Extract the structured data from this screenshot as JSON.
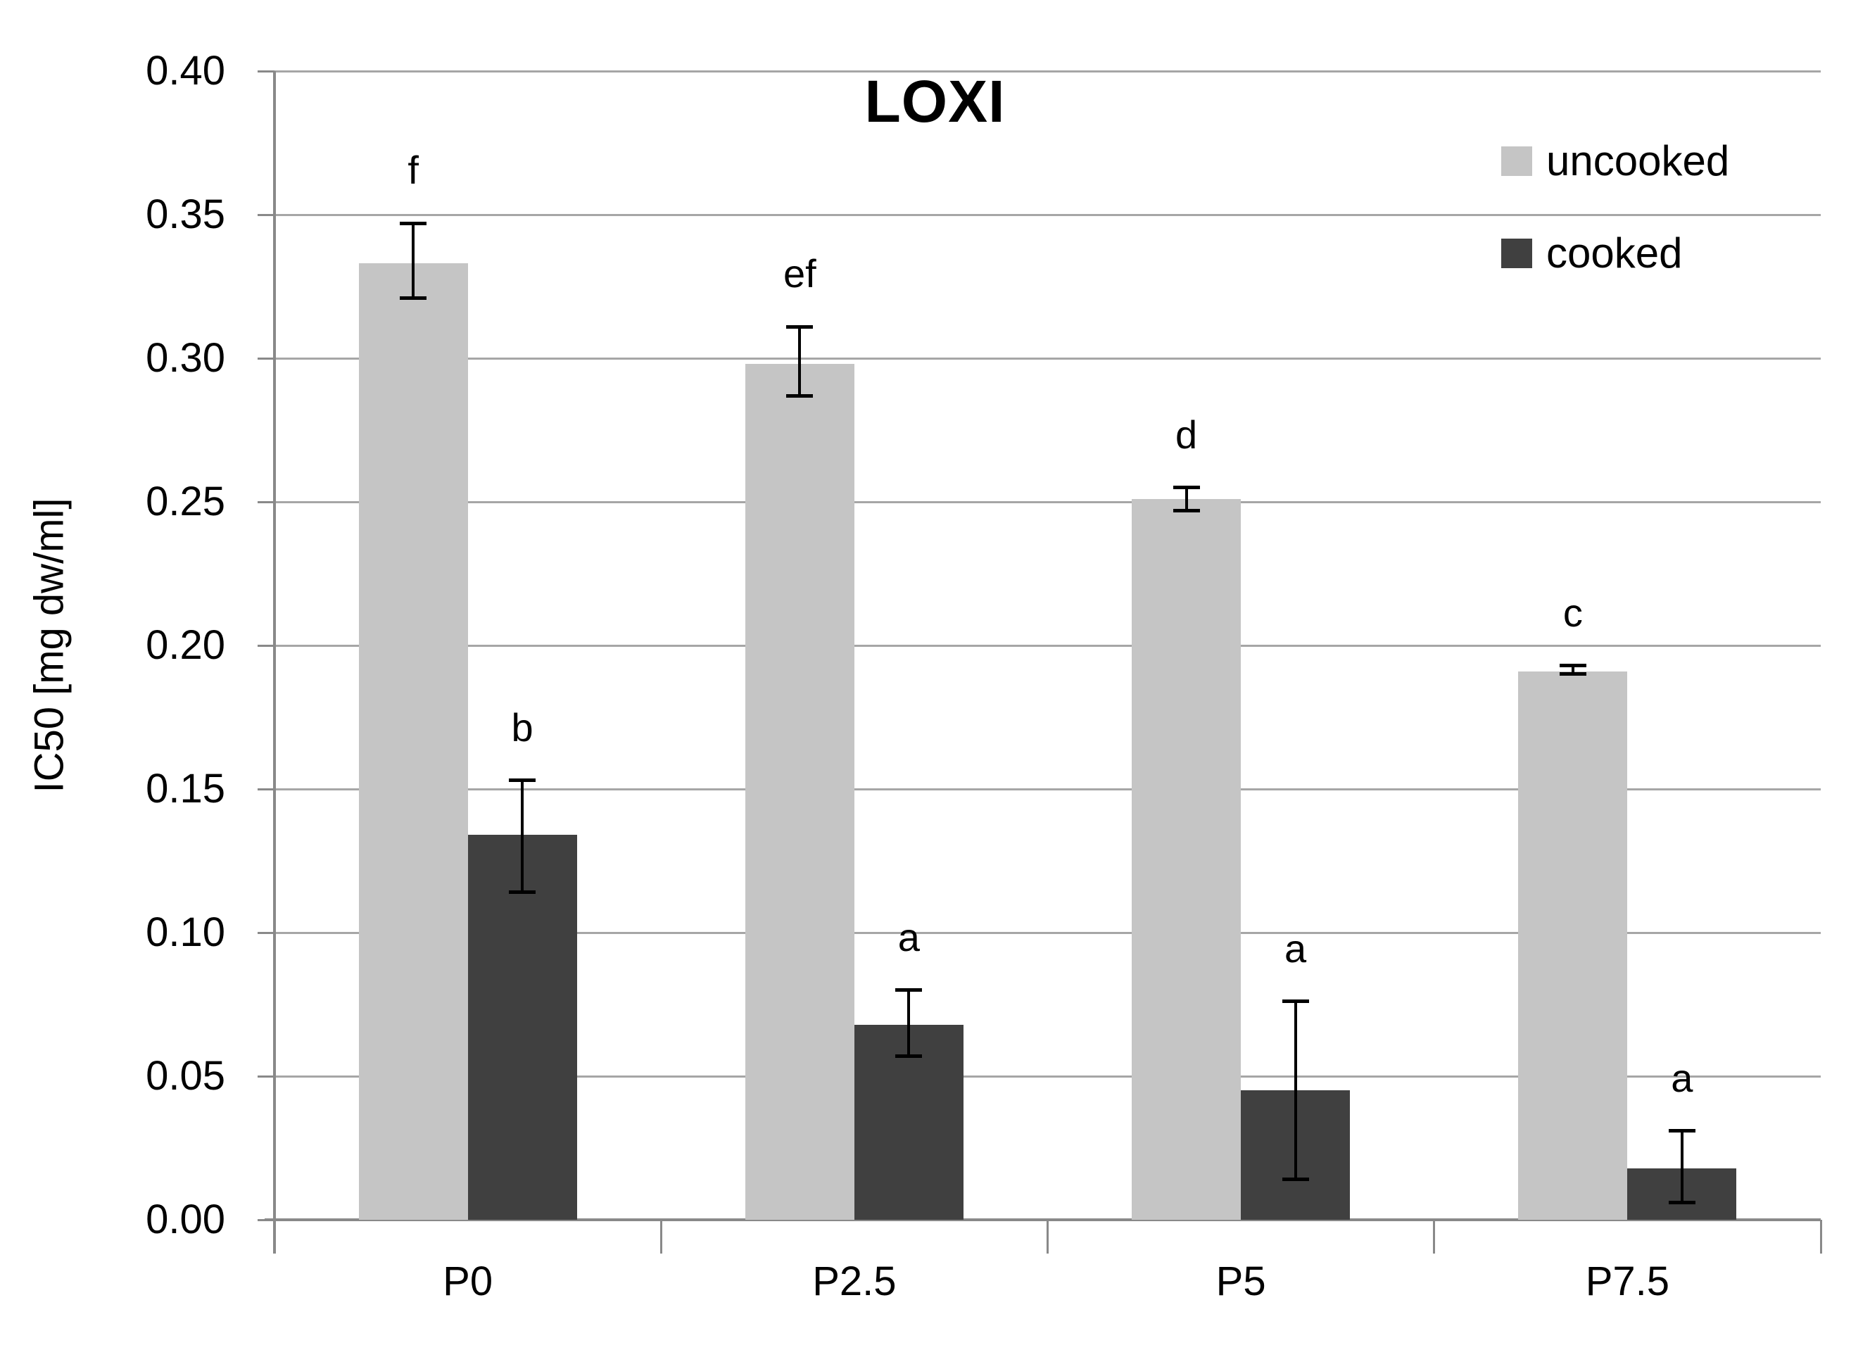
{
  "title": "LOXI",
  "y_axis_title": "IC50 [mg dw/ml]",
  "legend": [
    {
      "label": "uncooked",
      "color": "#c5c5c5"
    },
    {
      "label": "cooked",
      "color": "#404040"
    }
  ],
  "chart_data": {
    "type": "bar",
    "title": "LOXI",
    "xlabel": "",
    "ylabel": "IC50 [mg dw/ml]",
    "ylim": [
      0.0,
      0.4
    ],
    "ytick_step": 0.05,
    "ytick_labels": [
      "0.00",
      "0.05",
      "0.10",
      "0.15",
      "0.20",
      "0.25",
      "0.30",
      "0.35",
      "0.40"
    ],
    "categories": [
      "P0",
      "P2.5",
      "P5",
      "P7.5"
    ],
    "grid": true,
    "legend_position": "top-right-inside",
    "series": [
      {
        "name": "uncooked",
        "color": "#c5c5c5",
        "values": [
          0.333,
          0.298,
          0.251,
          0.191
        ],
        "error_low": [
          0.321,
          0.287,
          0.247,
          0.19
        ],
        "error_high": [
          0.347,
          0.311,
          0.255,
          0.193
        ],
        "letters": [
          "f",
          "ef",
          "d",
          "c"
        ]
      },
      {
        "name": "cooked",
        "color": "#404040",
        "values": [
          0.134,
          0.068,
          0.045,
          0.018
        ],
        "error_low": [
          0.114,
          0.057,
          0.014,
          0.006
        ],
        "error_high": [
          0.153,
          0.08,
          0.076,
          0.031
        ],
        "letters": [
          "b",
          "a",
          "a",
          "a"
        ]
      }
    ]
  }
}
